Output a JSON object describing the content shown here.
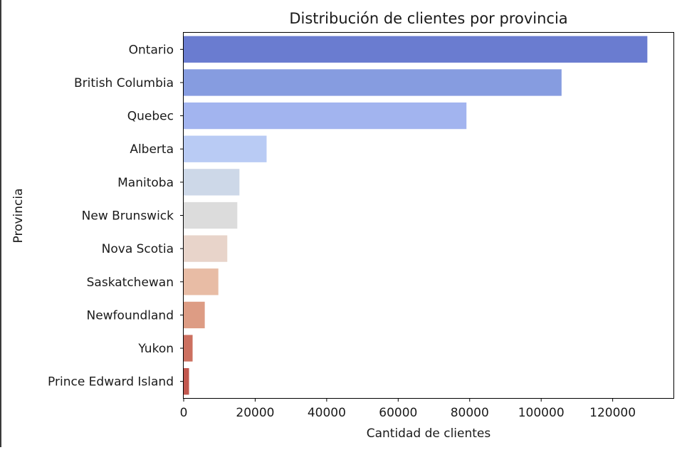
{
  "chart_data": {
    "type": "bar",
    "orientation": "horizontal",
    "title": "Distribución de clientes por provincia",
    "xlabel": "Cantidad de clientes",
    "ylabel": "Provincia",
    "categories": [
      "Ontario",
      "British Columbia",
      "Quebec",
      "Alberta",
      "Manitoba",
      "New Brunswick",
      "Nova Scotia",
      "Saskatchewan",
      "Newfoundland",
      "Yukon",
      "Prince Edward Island"
    ],
    "values": [
      129700,
      105700,
      79100,
      23200,
      15600,
      15000,
      12200,
      9700,
      5900,
      2500,
      1500
    ],
    "colors": [
      "#6a7cd0",
      "#869ce0",
      "#a2b4ef",
      "#b9cbf4",
      "#cdd8e8",
      "#dcdcdc",
      "#e8d4ca",
      "#e8bca5",
      "#dd9c84",
      "#cc7060",
      "#c2574e"
    ],
    "xlim": [
      0,
      137000
    ],
    "xticks": [
      0,
      20000,
      40000,
      60000,
      80000,
      100000,
      120000
    ],
    "grid": false,
    "legend": "none"
  }
}
